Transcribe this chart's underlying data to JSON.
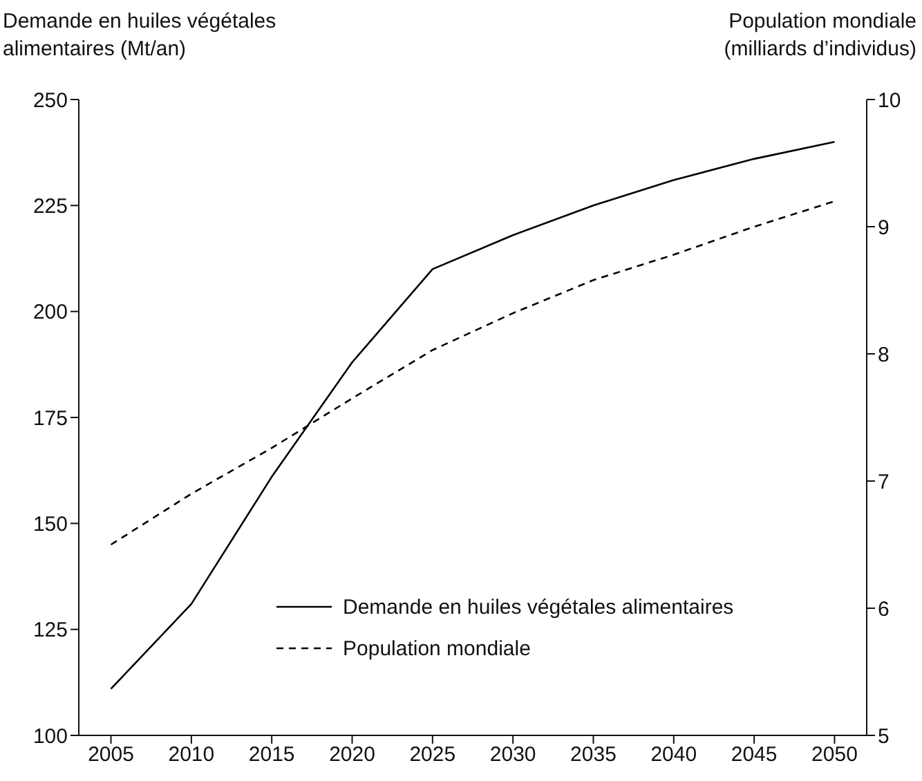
{
  "chart_data": {
    "type": "line",
    "ylabel": "Demande en huiles végétales alimentaires (Mt/an)",
    "y2label": "Population mondiale (milliards d’individus)",
    "x": [
      2005,
      2010,
      2015,
      2020,
      2025,
      2030,
      2035,
      2040,
      2045,
      2050
    ],
    "xlim": [
      2003,
      2052
    ],
    "xticks": [
      2005,
      2010,
      2015,
      2020,
      2025,
      2030,
      2035,
      2040,
      2045,
      2050
    ],
    "ylim": [
      100,
      250
    ],
    "yticks": [
      100,
      125,
      150,
      175,
      200,
      225,
      250
    ],
    "y2lim": [
      5,
      10
    ],
    "y2ticks": [
      5,
      6,
      7,
      8,
      9,
      10
    ],
    "series": [
      {
        "name": "Demande en huiles végétales alimentaires",
        "color": "#000000",
        "line_style": "solid",
        "values": [
          111,
          131,
          161,
          188,
          210,
          218,
          225,
          231,
          236,
          240
        ]
      },
      {
        "name": "Population mondiale",
        "color": "#000000",
        "line_style": "dashed",
        "axis": "y2",
        "values": [
          6.5,
          6.9,
          7.26,
          7.65,
          8.03,
          8.32,
          8.58,
          8.78,
          9.0,
          9.2
        ]
      }
    ],
    "legend": "bottom right",
    "grid": false,
    "marker": "none"
  }
}
